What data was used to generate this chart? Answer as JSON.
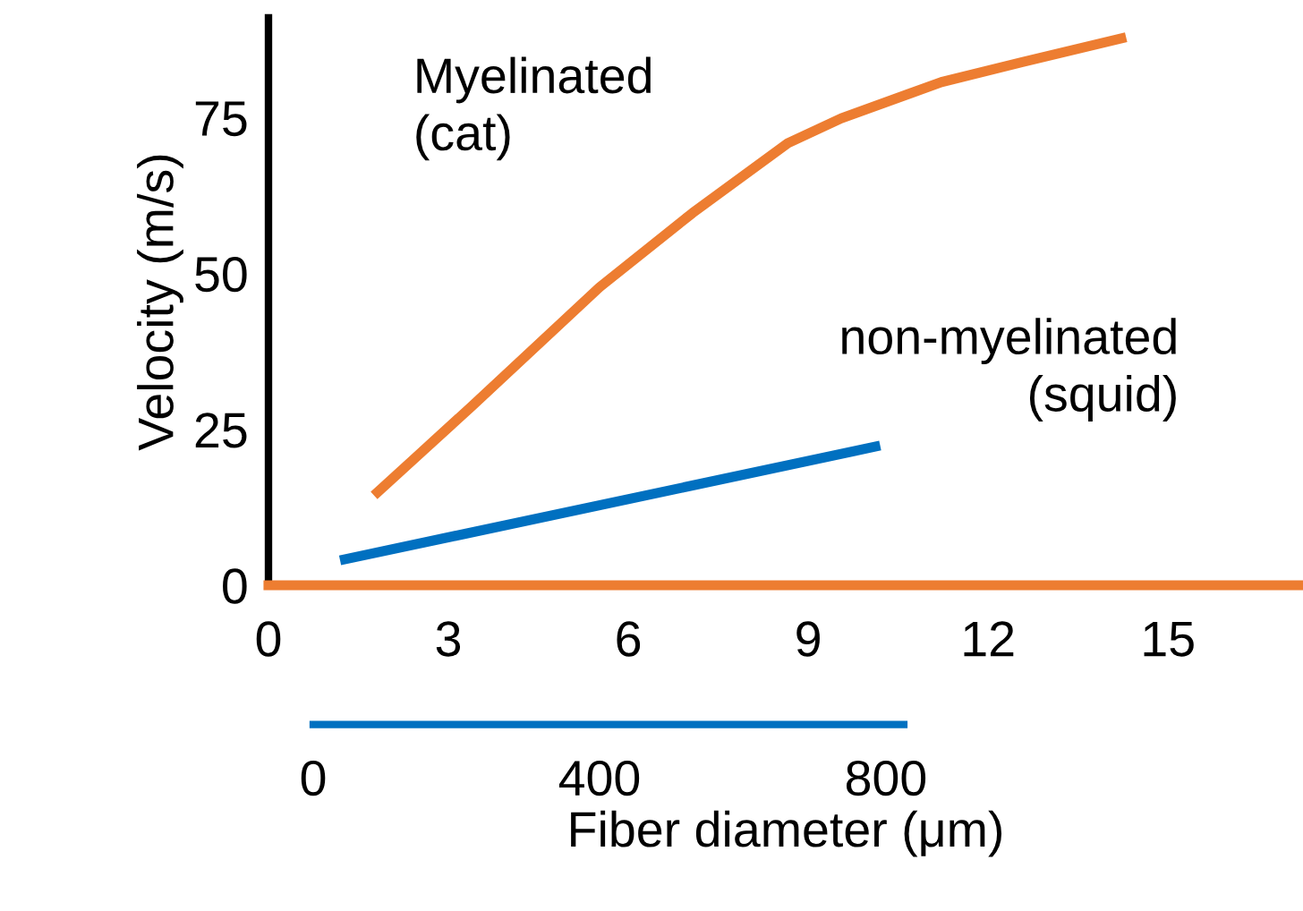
{
  "chart_data": {
    "type": "line",
    "ylabel": "Velocity (m/s)",
    "xlabel": "Fiber diameter (μm)",
    "xlim": [
      0,
      17.25
    ],
    "xticks": [
      0,
      3,
      6,
      9,
      12,
      15
    ],
    "ylim": [
      0,
      91
    ],
    "yticks": [
      0,
      25,
      50,
      75
    ],
    "x2lim": [
      0,
      825
    ],
    "x2ticks": [
      0,
      400,
      800
    ],
    "grid": false,
    "legend": false,
    "marker": "none",
    "line_style": "solid",
    "series": [
      {
        "name": "Myelinated\n(cat)",
        "color": "#ed7d31",
        "x": [
          1.76,
          3.4,
          5.52,
          7.07,
          8.66,
          9.55,
          11.22,
          12.57,
          14.3
        ],
        "values": [
          14.4,
          28.8,
          47.8,
          59.7,
          70.9,
          74.9,
          80.7,
          83.9,
          87.9
        ]
      },
      {
        "name": "non-myelinated\n(squid)",
        "color": "#0070c0",
        "axis": "x2",
        "x": [
          37.5,
          792
        ],
        "values": [
          4,
          22.4
        ]
      }
    ]
  }
}
